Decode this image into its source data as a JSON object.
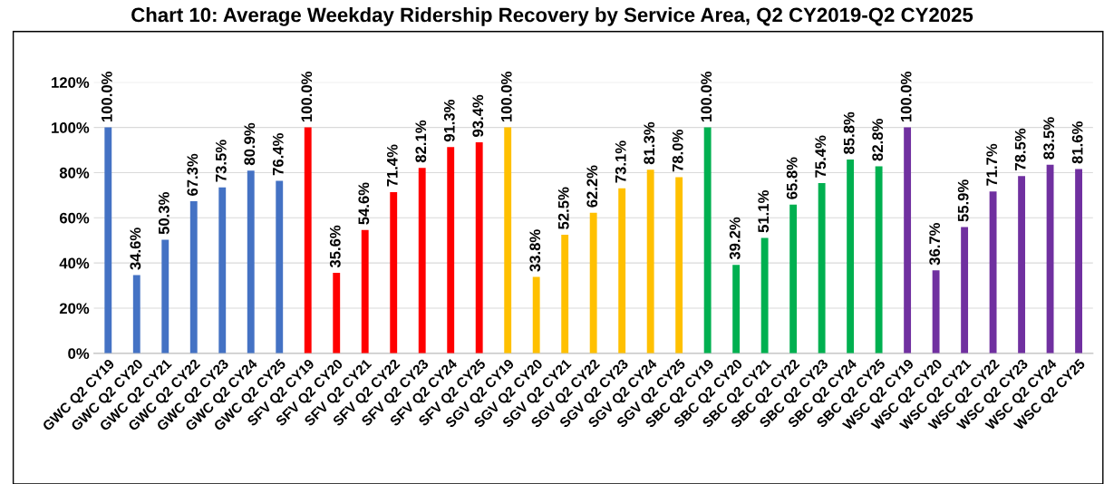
{
  "chart_data": {
    "type": "bar",
    "title": "Chart 10: Average Weekday Ridership Recovery by Service Area, Q2 CY2019-Q2 CY2025",
    "categories": [
      "GWC Q2 CY19",
      "GWC Q2 CY20",
      "GWC Q2 CY21",
      "GWC Q2 CY22",
      "GWC Q2 CY23",
      "GWC Q2 CY24",
      "GWC Q2 CY25",
      "SFV Q2 CY19",
      "SFV Q2 CY20",
      "SFV Q2 CY21",
      "SFV Q2 CY22",
      "SFV Q2 CY23",
      "SFV Q2 CY24",
      "SFV Q2 CY25",
      "SGV Q2 CY19",
      "SGV Q2 CY20",
      "SGV Q2 CY21",
      "SGV Q2 CY22",
      "SGV Q2 CY23",
      "SGV Q2 CY24",
      "SGV Q2 CY25",
      "SBC Q2 CY19",
      "SBC Q2 CY20",
      "SBC Q2 CY21",
      "SBC Q2 CY22",
      "SBC Q2 CY23",
      "SBC Q2 CY24",
      "SBC Q2 CY25",
      "WSC Q2 CY19",
      "WSC Q2 CY20",
      "WSC Q2 CY21",
      "WSC Q2 CY22",
      "WSC Q2 CY23",
      "WSC Q2 CY24",
      "WSC Q2 CY25"
    ],
    "values": [
      100.0,
      34.6,
      50.3,
      67.3,
      73.5,
      80.9,
      76.4,
      100.0,
      35.6,
      54.6,
      71.4,
      82.1,
      91.3,
      93.4,
      100.0,
      33.8,
      52.5,
      62.2,
      73.1,
      81.3,
      78.0,
      100.0,
      39.2,
      51.1,
      65.8,
      75.4,
      85.8,
      82.8,
      100.0,
      36.7,
      55.9,
      71.7,
      78.5,
      83.5,
      81.6
    ],
    "value_labels": [
      "100.0%",
      "34.6%",
      "50.3%",
      "67.3%",
      "73.5%",
      "80.9%",
      "76.4%",
      "100.0%",
      "35.6%",
      "54.6%",
      "71.4%",
      "82.1%",
      "91.3%",
      "93.4%",
      "100.0%",
      "33.8%",
      "52.5%",
      "62.2%",
      "73.1%",
      "81.3%",
      "78.0%",
      "100.0%",
      "39.2%",
      "51.1%",
      "65.8%",
      "75.4%",
      "85.8%",
      "82.8%",
      "100.0%",
      "36.7%",
      "55.9%",
      "71.7%",
      "78.5%",
      "83.5%",
      "81.6%"
    ],
    "colors": [
      "#4472c4",
      "#4472c4",
      "#4472c4",
      "#4472c4",
      "#4472c4",
      "#4472c4",
      "#4472c4",
      "#ff0000",
      "#ff0000",
      "#ff0000",
      "#ff0000",
      "#ff0000",
      "#ff0000",
      "#ff0000",
      "#ffc000",
      "#ffc000",
      "#ffc000",
      "#ffc000",
      "#ffc000",
      "#ffc000",
      "#ffc000",
      "#00b050",
      "#00b050",
      "#00b050",
      "#00b050",
      "#00b050",
      "#00b050",
      "#00b050",
      "#7030a0",
      "#7030a0",
      "#7030a0",
      "#7030a0",
      "#7030a0",
      "#7030a0",
      "#7030a0"
    ],
    "ylim": [
      0,
      120
    ],
    "yticks": [
      {
        "value": 0,
        "label": "0%"
      },
      {
        "value": 20,
        "label": "20%"
      },
      {
        "value": 40,
        "label": "40%"
      },
      {
        "value": 60,
        "label": "60%"
      },
      {
        "value": 80,
        "label": "80%"
      },
      {
        "value": 100,
        "label": "100%"
      },
      {
        "value": 120,
        "label": "120%"
      }
    ],
    "grid": "y",
    "legend": false
  }
}
